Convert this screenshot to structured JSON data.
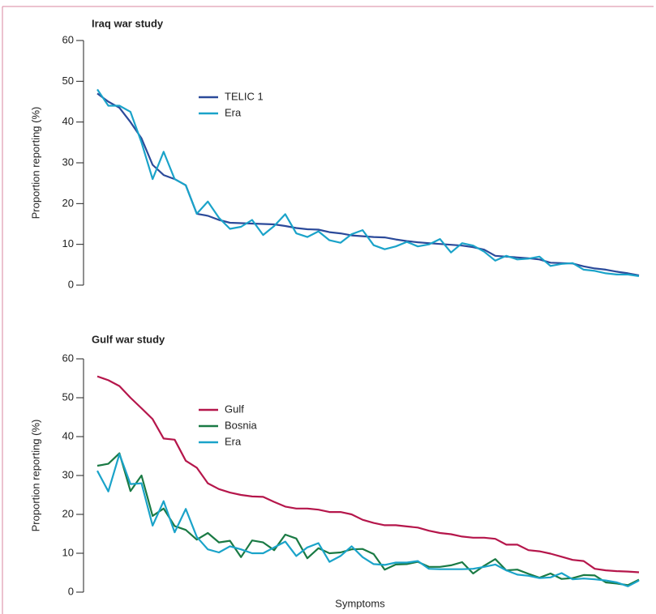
{
  "chart_data": [
    {
      "type": "line",
      "title": "Iraq war study",
      "ylabel": "Proportion reporting (%)",
      "ylim": [
        0,
        60
      ],
      "yticks": [
        0,
        10,
        20,
        30,
        40,
        50,
        60
      ],
      "series": [
        {
          "name": "TELIC 1",
          "color": "#2b4a9a",
          "values": [
            47,
            45,
            43.5,
            40,
            36,
            29.5,
            27,
            26,
            24.5,
            17.5,
            17,
            16,
            15.3,
            15.2,
            15.1,
            15,
            14.9,
            14.5,
            14,
            13.7,
            13.6,
            13,
            12.7,
            12.2,
            12,
            11.8,
            11.7,
            11.2,
            10.8,
            10.5,
            10.3,
            10.1,
            9.9,
            9.7,
            9.3,
            8.7,
            7.2,
            7,
            6.8,
            6.6,
            6.3,
            5.5,
            5.4,
            5.3,
            4.6,
            4.1,
            3.8,
            3.3,
            2.9,
            2.4
          ]
        },
        {
          "name": "Era",
          "color": "#1aa3c9",
          "values": [
            48,
            44,
            44,
            42.5,
            35,
            26,
            32.7,
            26,
            24.5,
            17.5,
            20.5,
            16.5,
            13.8,
            14.3,
            16,
            12.3,
            14.5,
            17.4,
            12.7,
            11.8,
            13.2,
            11,
            10.4,
            12.5,
            13.5,
            9.8,
            8.8,
            9.5,
            10.6,
            9.5,
            10,
            11.3,
            8,
            10.3,
            9.7,
            8.2,
            6,
            7.2,
            6.3,
            6.5,
            7,
            4.7,
            5.2,
            5.4,
            3.8,
            3.5,
            2.9,
            2.6,
            2.6,
            2.2
          ]
        }
      ]
    },
    {
      "type": "line",
      "title": "Gulf war study",
      "ylabel": "Proportion reporting (%)",
      "xlabel": "Symptoms",
      "ylim": [
        0,
        60
      ],
      "yticks": [
        0,
        10,
        20,
        30,
        40,
        50,
        60
      ],
      "series": [
        {
          "name": "Gulf",
          "color": "#b5164b",
          "values": [
            55.5,
            54.5,
            53,
            50,
            47.3,
            44.5,
            39.5,
            39.2,
            33.8,
            32,
            28,
            26.5,
            25.6,
            25,
            24.6,
            24.5,
            23.2,
            22,
            21.5,
            21.5,
            21.2,
            20.6,
            20.6,
            20,
            18.6,
            17.8,
            17.2,
            17.2,
            16.9,
            16.6,
            15.8,
            15.2,
            14.9,
            14.3,
            14,
            14,
            13.7,
            12.2,
            12.2,
            10.8,
            10.5,
            9.9,
            9.1,
            8.3,
            8,
            6,
            5.6,
            5.4,
            5.3,
            5.1
          ]
        },
        {
          "name": "Bosnia",
          "color": "#1a7a44",
          "values": [
            32.5,
            33,
            35.7,
            26,
            30,
            19.6,
            21.5,
            17,
            16,
            13.5,
            15.2,
            12.8,
            13.2,
            9,
            13.3,
            12.8,
            10.8,
            14.8,
            13.8,
            8.7,
            11.3,
            10,
            10.2,
            11,
            11.1,
            9.8,
            5.8,
            7.1,
            7.2,
            7.8,
            6.5,
            6.5,
            6.9,
            7.7,
            4.8,
            6.8,
            8.5,
            5.6,
            5.8,
            4.7,
            3.7,
            4.8,
            3.4,
            3.6,
            4.4,
            4.3,
            2.5,
            2.2,
            1.8,
            3.2
          ]
        },
        {
          "name": "Era",
          "color": "#1aa3c9",
          "values": [
            31.2,
            25.9,
            35.5,
            27.8,
            28,
            17.1,
            23.4,
            15.4,
            21.4,
            14.2,
            11,
            10.2,
            11.8,
            11,
            10,
            10,
            11.5,
            13,
            9.3,
            11.5,
            12.6,
            7.8,
            9.3,
            11.8,
            9,
            7.2,
            7,
            7.6,
            7.6,
            8,
            6,
            5.9,
            5.9,
            5.9,
            6,
            6.5,
            7.1,
            5.6,
            4.5,
            4.2,
            3.6,
            3.8,
            4.9,
            3.3,
            3.5,
            3.3,
            3,
            2.5,
            1.5,
            3
          ]
        }
      ]
    }
  ]
}
